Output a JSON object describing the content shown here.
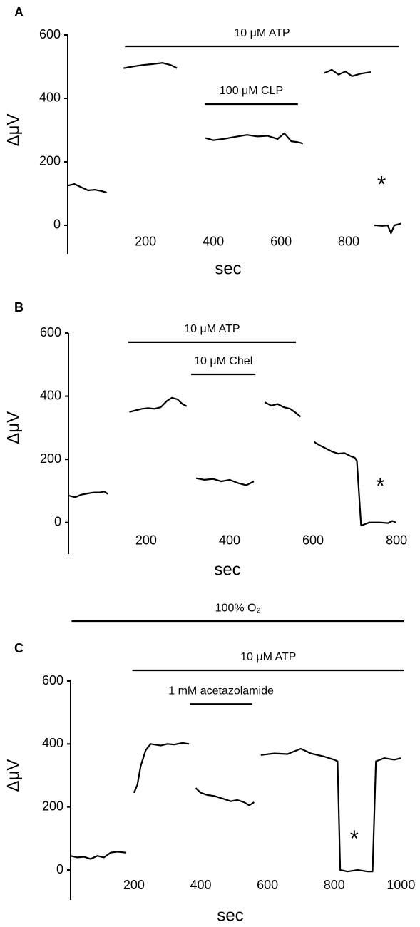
{
  "chart_data": [
    {
      "type": "line",
      "panel_label": "A",
      "x_label": "sec",
      "y_label": "ΔμV",
      "xlim": [
        -30,
        960
      ],
      "ylim": [
        -90,
        600
      ],
      "xticks": [
        200,
        400,
        600,
        800
      ],
      "yticks": [
        0,
        200,
        400,
        600
      ],
      "x": [
        -30,
        -10,
        10,
        30,
        50,
        70,
        85,
        null,
        135,
        160,
        190,
        220,
        250,
        275,
        293,
        null,
        377,
        400,
        430,
        460,
        500,
        530,
        560,
        590,
        610,
        630,
        650,
        665,
        null,
        728,
        750,
        770,
        790,
        810,
        835,
        865,
        null,
        876,
        900,
        915,
        925,
        935,
        954
      ],
      "series": [
        {
          "color": "#000000",
          "values": [
            125,
            130,
            120,
            110,
            112,
            108,
            103,
            null,
            495,
            500,
            505,
            508,
            512,
            505,
            495,
            null,
            275,
            268,
            272,
            278,
            285,
            280,
            282,
            272,
            290,
            265,
            262,
            258,
            null,
            480,
            490,
            475,
            485,
            470,
            478,
            483,
            null,
            0,
            -2,
            0,
            -25,
            0,
            5
          ]
        }
      ],
      "annotations": [
        {
          "label": "10 μM ATP",
          "x": [
            139,
            949
          ],
          "y": 564
        },
        {
          "label": "100 μM CLP",
          "x": [
            375,
            650
          ],
          "y": 382
        }
      ],
      "markers": [
        {
          "label": "*",
          "x": 897,
          "y": 137
        }
      ]
    },
    {
      "type": "line",
      "panel_label": "B",
      "x_label": "sec",
      "y_label": "ΔμV",
      "xlim": [
        14,
        810
      ],
      "ylim": [
        -100,
        600
      ],
      "xticks": [
        200,
        400,
        600,
        800
      ],
      "yticks": [
        0,
        200,
        400,
        600
      ],
      "x": [
        15,
        30,
        45,
        60,
        75,
        90,
        100,
        109,
        null,
        160,
        175,
        190,
        205,
        220,
        235,
        250,
        262,
        275,
        287,
        297,
        null,
        320,
        340,
        360,
        380,
        400,
        420,
        440,
        458,
        null,
        485,
        500,
        515,
        530,
        545,
        558,
        570,
        null,
        603,
        615,
        630,
        645,
        660,
        675,
        690,
        700,
        705,
        715,
        735,
        760,
        780,
        790,
        798
      ],
      "series": [
        {
          "color": "#000000",
          "values": [
            85,
            80,
            88,
            92,
            95,
            95,
            98,
            90,
            null,
            350,
            355,
            360,
            362,
            360,
            365,
            385,
            395,
            390,
            375,
            368,
            null,
            140,
            135,
            138,
            130,
            135,
            125,
            118,
            130,
            null,
            380,
            370,
            375,
            365,
            360,
            348,
            335,
            null,
            255,
            245,
            235,
            225,
            218,
            220,
            210,
            205,
            195,
            -10,
            0,
            0,
            -2,
            5,
            0
          ]
        }
      ],
      "annotations": [
        {
          "label": "10 μM ATP",
          "x": [
            157,
            559
          ],
          "y": 571
        },
        {
          "label": "10 μM Chel",
          "x": [
            308,
            462
          ],
          "y": 469
        }
      ],
      "markers": [
        {
          "label": "*",
          "x": 761,
          "y": 124
        }
      ]
    },
    {
      "type": "line",
      "panel_label": "C",
      "x_label": "sec",
      "y_label": "ΔμV",
      "xlim": [
        10,
        1010
      ],
      "ylim": [
        -95,
        600
      ],
      "xticks": [
        200,
        400,
        600,
        800,
        1000
      ],
      "yticks": [
        0,
        200,
        400,
        600
      ],
      "x": [
        10,
        30,
        50,
        70,
        90,
        110,
        130,
        150,
        175,
        null,
        200,
        210,
        220,
        235,
        250,
        280,
        300,
        320,
        345,
        365,
        null,
        385,
        400,
        420,
        440,
        470,
        490,
        510,
        530,
        545,
        560,
        null,
        580,
        620,
        660,
        700,
        730,
        770,
        800,
        810,
        818,
        840,
        870,
        900,
        915,
        925,
        950,
        980,
        1000
      ],
      "series": [
        {
          "color": "#000000",
          "values": [
            45,
            40,
            42,
            35,
            45,
            40,
            55,
            58,
            55,
            null,
            245,
            270,
            330,
            380,
            400,
            395,
            400,
            398,
            403,
            400,
            null,
            260,
            245,
            238,
            235,
            225,
            218,
            222,
            215,
            205,
            215,
            null,
            365,
            370,
            368,
            385,
            370,
            360,
            350,
            345,
            0,
            -5,
            0,
            -5,
            -5,
            345,
            355,
            350,
            355
          ]
        }
      ],
      "annotations": [
        {
          "label": "100% O₂",
          "x": [
            13,
            1010
          ],
          "y": 790
        },
        {
          "label": "10 μM ATP",
          "x": [
            195,
            1010
          ],
          "y": 634
        },
        {
          "label": "1 mM acetazolamide",
          "x": [
            367,
            555
          ],
          "y": 527
        }
      ],
      "markers": [
        {
          "label": "*",
          "x": 860,
          "y": 108
        }
      ]
    }
  ]
}
